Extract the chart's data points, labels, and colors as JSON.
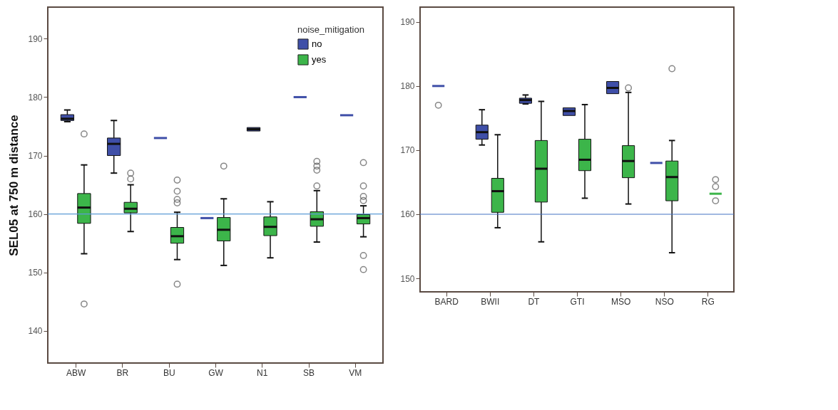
{
  "chart_data": [
    {
      "type": "box",
      "ylabel": "SEL05 at 750 m distance",
      "legend_title": "noise_mitigation",
      "legend": "top right",
      "grid": false,
      "categories": [
        "ABW",
        "BR",
        "BU",
        "GW",
        "N1",
        "SB",
        "VM"
      ],
      "ylim": [
        134.5,
        195.4
      ],
      "yticks": [
        140,
        150,
        160,
        170,
        180,
        190
      ],
      "ref_lines": [
        {
          "axis": "y",
          "value": 160,
          "color": "#5b9bd5"
        }
      ],
      "series": [
        {
          "name": "no",
          "color": "#3f4fa8",
          "boxes": [
            {
              "low": 175.8,
              "q1": 176,
              "median": 176.3,
              "q3": 177,
              "high": 177.8
            },
            {
              "low": 167,
              "q1": 170,
              "median": 172,
              "q3": 173,
              "high": 176
            },
            {
              "low": 173,
              "q1": 173,
              "median": 173,
              "q3": 173,
              "high": 173
            },
            {
              "low": 159.3,
              "q1": 159.3,
              "median": 159.3,
              "q3": 159.3,
              "high": 159.3
            },
            {
              "low": 174.2,
              "q1": 174.2,
              "median": 174.5,
              "q3": 174.8,
              "high": 174.8
            },
            {
              "low": 180,
              "q1": 180,
              "median": 180,
              "q3": 180,
              "high": 180
            },
            {
              "low": 176.9,
              "q1": 176.9,
              "median": 176.9,
              "q3": 176.9,
              "high": 176.9
            }
          ]
        },
        {
          "name": "yes",
          "color": "#3cb54a",
          "boxes": [
            {
              "low": 153.2,
              "q1": 158.4,
              "median": 161.1,
              "q3": 163.5,
              "high": 168.4,
              "outliers": [
                173.7,
                144.6
              ]
            },
            {
              "low": 157,
              "q1": 160.2,
              "median": 160.9,
              "q3": 162,
              "high": 165,
              "outliers": [
                166,
                167
              ]
            },
            {
              "low": 152.2,
              "q1": 155,
              "median": 156.2,
              "q3": 157.7,
              "high": 160.3,
              "outliers": [
                161.9,
                162.5,
                163.9,
                165.8,
                148
              ]
            },
            {
              "low": 151.2,
              "q1": 155.4,
              "median": 157.3,
              "q3": 159.4,
              "high": 162.6,
              "outliers": [
                168.2
              ]
            },
            {
              "low": 152.5,
              "q1": 156.3,
              "median": 157.8,
              "q3": 159.5,
              "high": 162.1
            },
            {
              "low": 155.2,
              "q1": 157.9,
              "median": 159.1,
              "q3": 160.4,
              "high": 164,
              "outliers": [
                164.8,
                167.5,
                168.2,
                169
              ]
            },
            {
              "low": 156.1,
              "q1": 158.3,
              "median": 159.3,
              "q3": 159.9,
              "high": 161.4,
              "outliers": [
                162.3,
                163,
                164.8,
                168.8,
                152.9,
                150.5
              ]
            }
          ]
        }
      ]
    },
    {
      "type": "box",
      "legend": false,
      "grid": false,
      "categories": [
        "BARD",
        "BWII",
        "DT",
        "GTI",
        "MSO",
        "NSO",
        "RG"
      ],
      "ylim": [
        147.9,
        192.3
      ],
      "yticks": [
        150,
        160,
        170,
        180,
        190
      ],
      "ref_lines": [
        {
          "axis": "y",
          "value": 160,
          "color": "#4472c4"
        }
      ],
      "series": [
        {
          "color": "#3f4fa8",
          "boxes": [
            {
              "low": 180,
              "q1": 180,
              "median": 180,
              "q3": 180,
              "high": 180,
              "outliers": [
                177
              ]
            },
            {
              "low": 170.8,
              "q1": 171.7,
              "median": 172.8,
              "q3": 173.9,
              "high": 176.3
            },
            {
              "low": 177.2,
              "q1": 177.3,
              "median": 177.8,
              "q3": 178.1,
              "high": 178.6
            },
            {
              "low": 175.4,
              "q1": 175.4,
              "median": 176.1,
              "q3": 176.6,
              "high": 176.6
            },
            {
              "low": 178.8,
              "q1": 178.8,
              "median": 179.7,
              "q3": 180.7,
              "high": 180.7
            },
            {
              "low": 168,
              "q1": 168,
              "median": 168,
              "q3": 168,
              "high": 168
            },
            null
          ]
        },
        {
          "color": "#3cb54a",
          "boxes": [
            null,
            {
              "low": 157.9,
              "q1": 160.3,
              "median": 163.6,
              "q3": 165.6,
              "high": 172.4
            },
            {
              "low": 155.7,
              "q1": 161.9,
              "median": 167.1,
              "q3": 171.5,
              "high": 177.6
            },
            {
              "low": 162.5,
              "q1": 166.8,
              "median": 168.5,
              "q3": 171.7,
              "high": 177.1
            },
            {
              "low": 161.6,
              "q1": 165.7,
              "median": 168.3,
              "q3": 170.7,
              "high": 179,
              "outliers": [
                179.7
              ]
            },
            {
              "low": 154,
              "q1": 162.1,
              "median": 165.8,
              "q3": 168.3,
              "high": 171.5,
              "outliers": [
                182.7
              ]
            },
            {
              "low": 163.2,
              "q1": 163.2,
              "median": 163.2,
              "q3": 163.2,
              "high": 163.2,
              "outliers": [
                165.4,
                164.3,
                162.1
              ]
            }
          ]
        }
      ]
    }
  ]
}
